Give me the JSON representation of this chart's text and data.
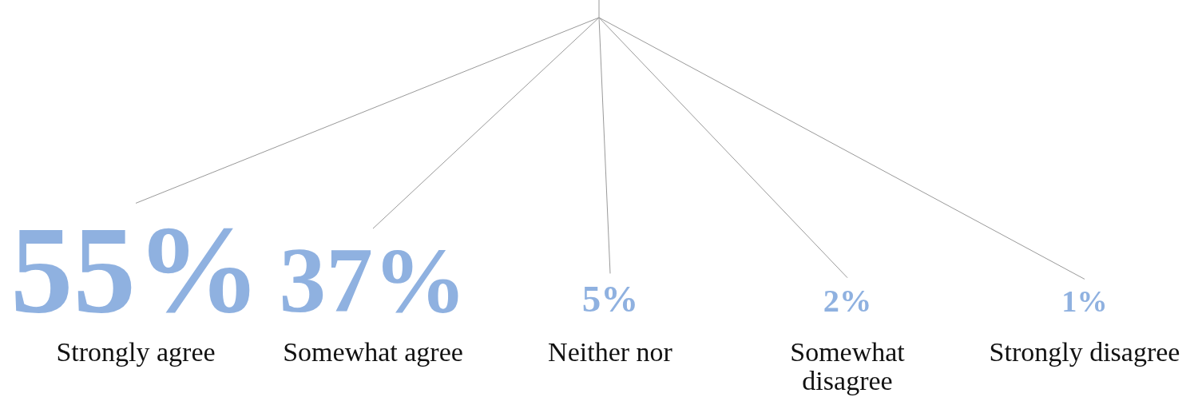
{
  "chart_data": {
    "type": "other",
    "categories": [
      "Strongly agree",
      "Somewhat agree",
      "Neither nor",
      "Somewhat\ndisagree",
      "Strongly disagree"
    ],
    "values": [
      55,
      37,
      5,
      2,
      1
    ],
    "value_labels": [
      "55%",
      "37%",
      "5%",
      "2%",
      "1%"
    ],
    "color": "#8fb1e0"
  }
}
